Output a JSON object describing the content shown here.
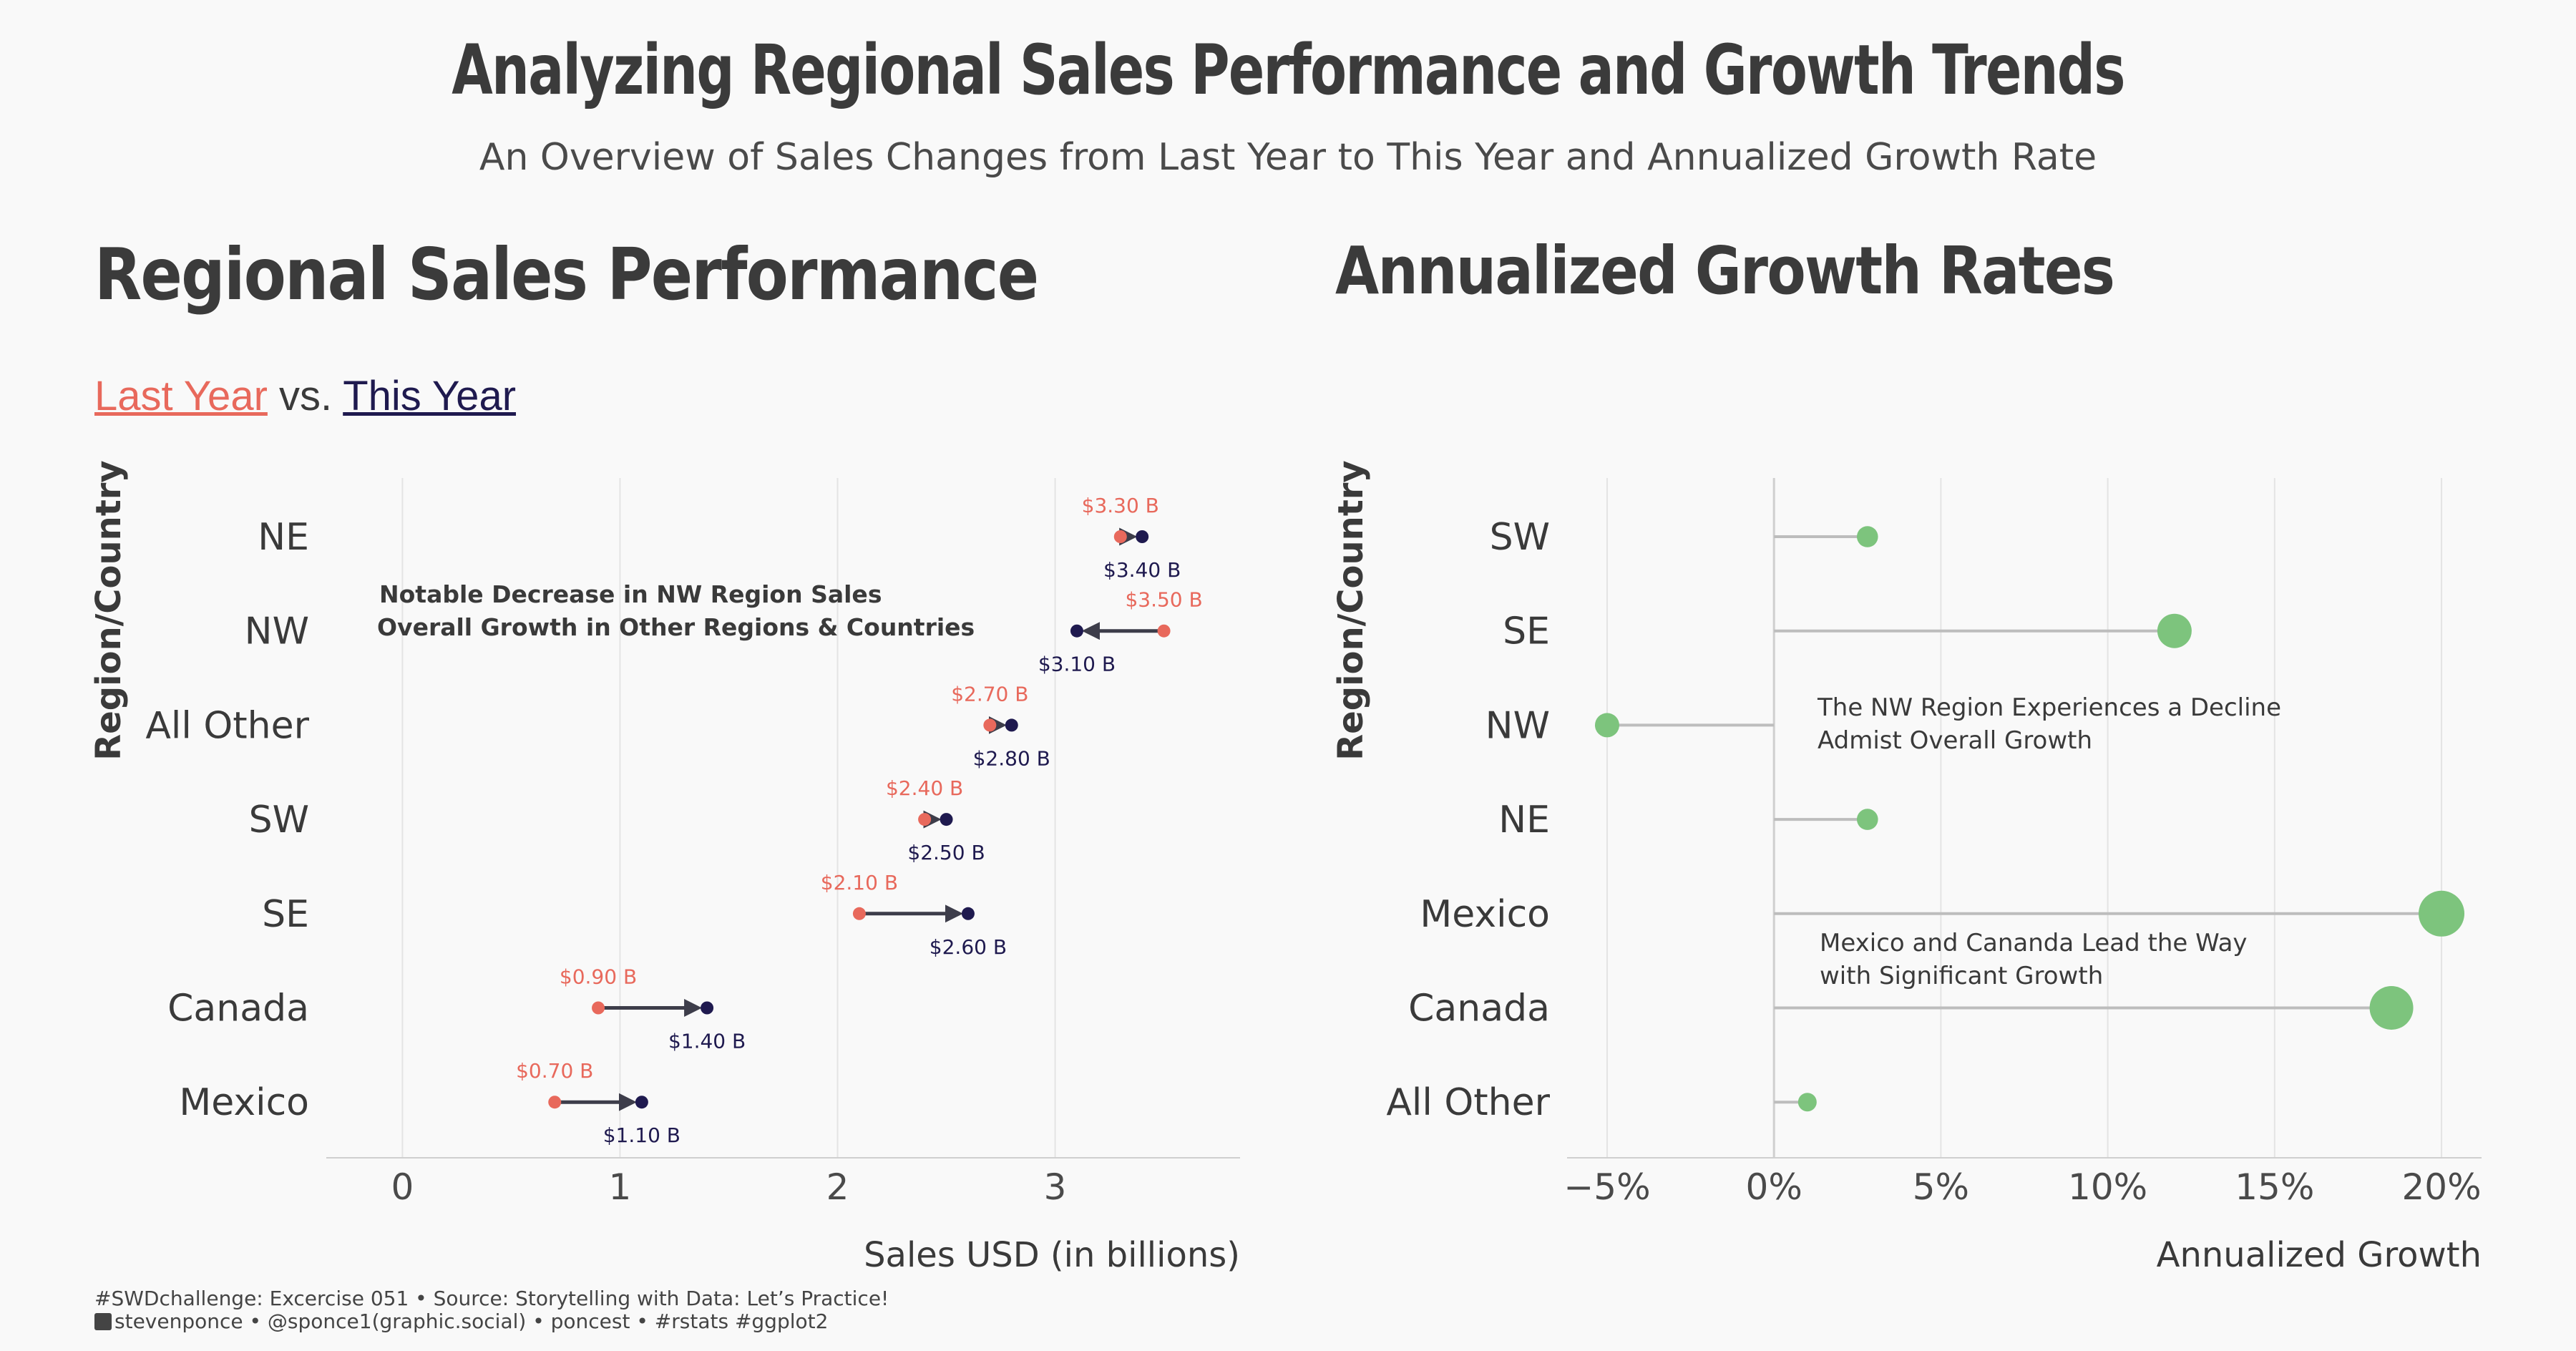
{
  "title": "Analyzing Regional Sales Performance and Growth Trends",
  "subtitle": "An Overview of Sales Changes from Last  Year to This Year and Annualized Growth Rate",
  "left_panel": {
    "title": "Regional Sales Performance",
    "legend_last": "Last Year",
    "legend_vs": " vs. ",
    "legend_this": "This Year",
    "annotation_line1": "Notable Decrease in NW Region Sales",
    "annotation_line2": "Overall Growth in Other Regions & Countries"
  },
  "right_panel": {
    "title": "Annualized Growth Rates",
    "annotation1_line1": "The NW Region Experiences a Decline",
    "annotation1_line2": " Admist Overall Growth",
    "annotation2_line1": "Mexico and Cananda Lead the Way",
    "annotation2_line2": " with Significant Growth"
  },
  "caption_line1": "#SWDchallenge: Excercise 051 • Source: Storytelling with Data: Let’s Practice!",
  "caption_line2": "stevenponce • @sponce1(graphic.social) • poncest • #rstats #ggplot2",
  "colors": {
    "last_year": "#e8695c",
    "this_year": "#1f1a4f",
    "arrow": "#3d3d4a",
    "growth": "#7dc47d",
    "stem": "#bdbdbd",
    "grid": "#e4e4e4"
  },
  "chart_data": [
    {
      "type": "dumbbell",
      "title": "Regional Sales Performance",
      "xlabel": "Sales USD (in billions)",
      "ylabel": "Region/Country",
      "xlim": [
        -0.35,
        3.85
      ],
      "xticks": [
        0,
        1,
        2,
        3
      ],
      "categories": [
        "NE",
        "NW",
        "All Other",
        "SW",
        "SE",
        "Canada",
        "Mexico"
      ],
      "series": [
        {
          "name": "Last Year",
          "values": [
            3.3,
            3.5,
            2.7,
            2.4,
            2.1,
            0.9,
            0.7
          ],
          "labels": [
            "$3.30 B",
            "$3.50 B",
            "$2.70 B",
            "$2.40 B",
            "$2.10 B",
            "$0.90 B",
            "$0.70 B"
          ]
        },
        {
          "name": "This Year",
          "values": [
            3.4,
            3.1,
            2.8,
            2.5,
            2.6,
            1.4,
            1.1
          ],
          "labels": [
            "$3.40 B",
            "$3.10 B",
            "$2.80 B",
            "$2.50 B",
            "$2.60 B",
            "$1.40 B",
            "$1.10 B"
          ]
        }
      ]
    },
    {
      "type": "lollipop",
      "title": "Annualized Growth Rates",
      "xlabel": "Annualized Growth",
      "ylabel": "Region/Country",
      "xlim": [
        -6.2,
        21.2
      ],
      "xticks": [
        -5,
        0,
        5,
        10,
        15,
        20
      ],
      "xtick_labels": [
        "−5%",
        "0%",
        "5%",
        "10%",
        "15%",
        "20%"
      ],
      "categories": [
        "SW",
        "SE",
        "NW",
        "NE",
        "Mexico",
        "Canada",
        "All Other"
      ],
      "values": [
        2.8,
        12.0,
        -5.0,
        2.8,
        20.0,
        18.5,
        1.0
      ]
    }
  ]
}
